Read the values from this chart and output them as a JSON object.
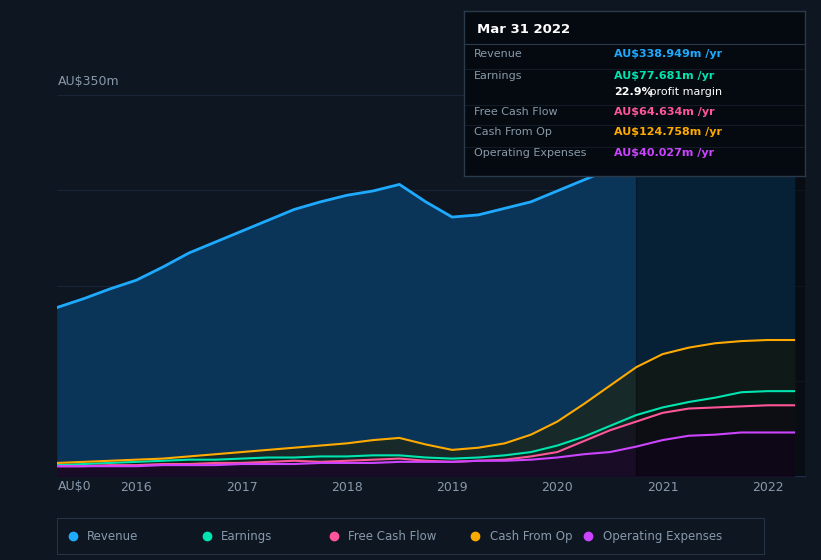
{
  "background_color": "#0e1621",
  "chart_bg": "#0e1621",
  "grid_color": "#1e3048",
  "text_color": "#8899aa",
  "ylabel_top": "AU$350m",
  "ylabel_bottom": "AU$0",
  "x_labels": [
    "2016",
    "2017",
    "2018",
    "2019",
    "2020",
    "2021",
    "2022"
  ],
  "years": [
    2015.25,
    2015.5,
    2015.75,
    2016.0,
    2016.25,
    2016.5,
    2016.75,
    2017.0,
    2017.25,
    2017.5,
    2017.75,
    2018.0,
    2018.25,
    2018.5,
    2018.75,
    2019.0,
    2019.25,
    2019.5,
    2019.75,
    2020.0,
    2020.25,
    2020.5,
    2020.75,
    2021.0,
    2021.25,
    2021.5,
    2021.75,
    2022.0,
    2022.25
  ],
  "revenue": [
    155,
    163,
    172,
    180,
    192,
    205,
    215,
    225,
    235,
    245,
    252,
    258,
    262,
    268,
    252,
    238,
    240,
    246,
    252,
    262,
    272,
    282,
    290,
    300,
    312,
    324,
    338,
    339,
    339
  ],
  "earnings": [
    10,
    11,
    12,
    13,
    14,
    15,
    15,
    16,
    17,
    17,
    18,
    18,
    19,
    19,
    17,
    16,
    17,
    19,
    22,
    28,
    36,
    46,
    56,
    63,
    68,
    72,
    77,
    78,
    78
  ],
  "free_cash_flow": [
    9,
    9,
    10,
    10,
    11,
    11,
    12,
    12,
    13,
    14,
    13,
    14,
    15,
    16,
    14,
    13,
    14,
    15,
    18,
    22,
    32,
    42,
    50,
    58,
    62,
    63,
    64,
    65,
    65
  ],
  "cash_from_op": [
    12,
    13,
    14,
    15,
    16,
    18,
    20,
    22,
    24,
    26,
    28,
    30,
    33,
    35,
    29,
    24,
    26,
    30,
    38,
    50,
    66,
    83,
    100,
    112,
    118,
    122,
    124,
    125,
    125
  ],
  "operating_expenses": [
    9,
    9,
    9,
    9,
    10,
    10,
    10,
    11,
    11,
    11,
    12,
    12,
    12,
    13,
    13,
    13,
    14,
    14,
    15,
    17,
    20,
    22,
    27,
    33,
    37,
    38,
    40,
    40,
    40
  ],
  "revenue_color": "#1eaaff",
  "earnings_color": "#00e5b0",
  "free_cash_flow_color": "#ff5599",
  "cash_from_op_color": "#ffaa00",
  "operating_expenses_color": "#cc44ff",
  "revenue_fill_color": "#0a3558",
  "highlight_x_start": 2020.75,
  "highlight_x_end": 2022.35,
  "ylim": [
    0,
    350
  ],
  "xlim_start": 2015.25,
  "xlim_end": 2022.35,
  "tooltip_title": "Mar 31 2022",
  "tooltip_rows": [
    {
      "label": "Revenue",
      "value": "AU$338.949m /yr",
      "color": "#1eaaff"
    },
    {
      "label": "Earnings",
      "value": "AU$77.681m /yr",
      "color": "#00e5b0"
    },
    {
      "label": "",
      "value": "22.9% profit margin",
      "color": "white"
    },
    {
      "label": "Free Cash Flow",
      "value": "AU$64.634m /yr",
      "color": "#ff5599"
    },
    {
      "label": "Cash From Op",
      "value": "AU$124.758m /yr",
      "color": "#ffaa00"
    },
    {
      "label": "Operating Expenses",
      "value": "AU$40.027m /yr",
      "color": "#cc44ff"
    }
  ],
  "legend_items": [
    {
      "label": "Revenue",
      "color": "#1eaaff"
    },
    {
      "label": "Earnings",
      "color": "#00e5b0"
    },
    {
      "label": "Free Cash Flow",
      "color": "#ff5599"
    },
    {
      "label": "Cash From Op",
      "color": "#ffaa00"
    },
    {
      "label": "Operating Expenses",
      "color": "#cc44ff"
    }
  ]
}
